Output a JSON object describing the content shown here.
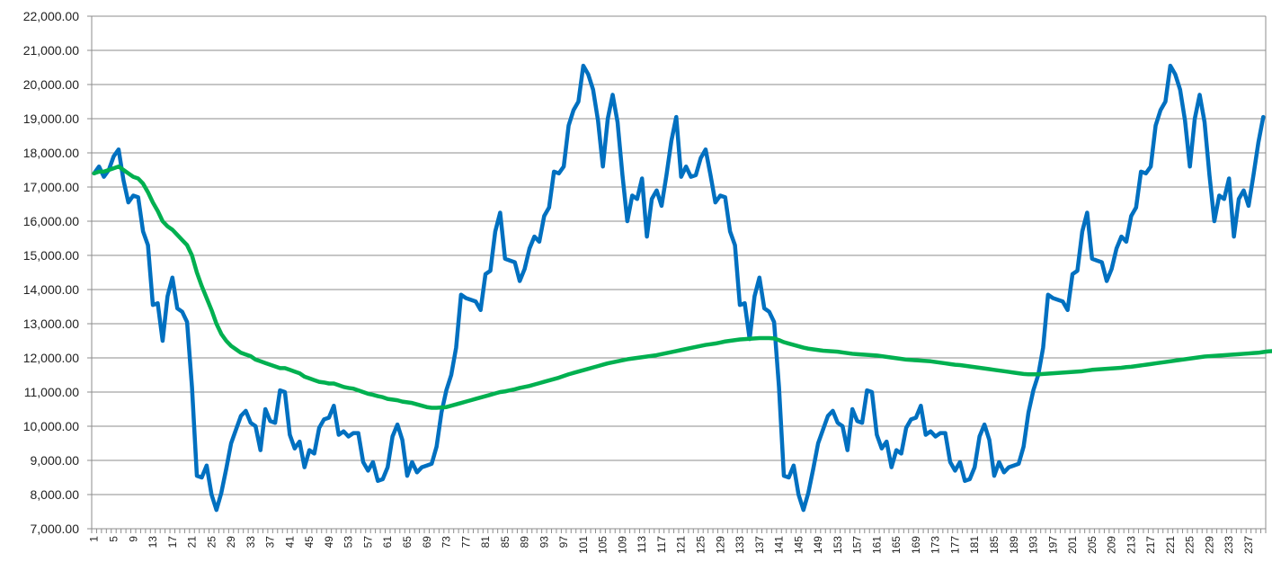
{
  "chart_data": {
    "type": "line",
    "title": "",
    "xlabel": "",
    "ylabel": "",
    "ylim": [
      7000,
      22000
    ],
    "ytick_step": 1000,
    "ytick_labels": [
      "7,000.00",
      "8,000.00",
      "9,000.00",
      "10,000.00",
      "11,000.00",
      "12,000.00",
      "13,000.00",
      "14,000.00",
      "15,000.00",
      "16,000.00",
      "17,000.00",
      "18,000.00",
      "19,000.00",
      "20,000.00",
      "21,000.00",
      "22,000.00"
    ],
    "x_count": 240,
    "x_tick_labels": [
      "1",
      "5",
      "9",
      "13",
      "17",
      "21",
      "25",
      "29",
      "33",
      "37",
      "41",
      "45",
      "49",
      "53",
      "57",
      "61",
      "65",
      "69",
      "73",
      "77",
      "81",
      "85",
      "89",
      "93",
      "97",
      "101",
      "105",
      "109",
      "113",
      "117",
      "121",
      "125",
      "129",
      "133",
      "137",
      "141",
      "145",
      "149",
      "153",
      "157",
      "161",
      "165",
      "169",
      "173",
      "177",
      "181",
      "185",
      "189",
      "193",
      "197",
      "201",
      "205",
      "209",
      "213",
      "217",
      "221",
      "225",
      "229",
      "233",
      "237"
    ],
    "grid": true,
    "legend": "none",
    "series": [
      {
        "color": "#0070C0",
        "values": [
          17400,
          17600,
          17300,
          17500,
          17900,
          18100,
          17200,
          16550,
          16750,
          16700,
          15700,
          15300,
          13550,
          13600,
          12500,
          13800,
          14350,
          13450,
          13350,
          13050,
          11150,
          8550,
          8500,
          8850,
          8000,
          7550,
          8050,
          8750,
          9500,
          9900,
          10300,
          10450,
          10100,
          10000,
          9300,
          10500,
          10150,
          10100,
          11050,
          11000,
          9750,
          9350,
          9550,
          8800,
          9300,
          9200,
          9950,
          10200,
          10250,
          10600,
          9750,
          9850,
          9700,
          9800,
          9800,
          8950,
          8700,
          8950,
          8400,
          8450,
          8800,
          9700,
          10050,
          9600,
          8550,
          8950,
          8650,
          8800,
          8850,
          8900,
          9400,
          10400,
          11050,
          11500,
          12300,
          13850,
          13750,
          13700,
          13650,
          13400,
          14450,
          14550,
          15700,
          16250,
          14900,
          14850,
          14800,
          14250,
          14600,
          15200,
          15550,
          15400,
          16150,
          16400,
          17450,
          17400,
          17600,
          18800,
          19250,
          19500,
          20550,
          20300,
          19850,
          18950,
          17600,
          19000,
          19700,
          18900,
          17350,
          16000,
          16750,
          16650,
          17250,
          15550,
          16650,
          16900,
          16450,
          17350,
          18350,
          19050,
          17300,
          17600,
          17300,
          17350,
          17850,
          18100,
          17350,
          16550,
          16750,
          16700,
          15700,
          15300,
          13550,
          13600,
          12550,
          13800,
          14350,
          13450,
          13350,
          13050,
          11150,
          8550,
          8500,
          8850,
          8000,
          7550,
          8050,
          8750,
          9500,
          9900,
          10300,
          10450,
          10100,
          10000,
          9300,
          10500,
          10150,
          10100,
          11050,
          11000,
          9750,
          9350,
          9550,
          8800,
          9300,
          9200,
          9950,
          10200,
          10250,
          10600,
          9750,
          9850,
          9700,
          9800,
          9800,
          8950,
          8700,
          8950,
          8400,
          8450,
          8800,
          9700,
          10050,
          9600,
          8550,
          8950,
          8650,
          8800,
          8850,
          8900,
          9400,
          10400,
          11050,
          11500,
          12300,
          13850,
          13750,
          13700,
          13650,
          13400,
          14450,
          14550,
          15700,
          16250,
          14900,
          14850,
          14800,
          14250,
          14600,
          15200,
          15550,
          15400,
          16150,
          16400,
          17450,
          17400,
          17600,
          18800,
          19250,
          19500,
          20550,
          20300,
          19850,
          18950,
          17600,
          19000,
          19700,
          18900,
          17350,
          16000,
          16750,
          16650,
          17250,
          15550,
          16650,
          16900,
          16450,
          17350,
          18300,
          19050
        ]
      },
      {
        "color": "#00B050",
        "values": [
          17400,
          17450,
          17450,
          17500,
          17550,
          17600,
          17500,
          17400,
          17300,
          17250,
          17100,
          16850,
          16550,
          16300,
          16000,
          15850,
          15750,
          15600,
          15450,
          15300,
          15000,
          14500,
          14100,
          13750,
          13400,
          13000,
          12700,
          12500,
          12350,
          12250,
          12150,
          12100,
          12050,
          11950,
          11900,
          11850,
          11800,
          11750,
          11700,
          11700,
          11650,
          11600,
          11550,
          11450,
          11400,
          11350,
          11300,
          11280,
          11250,
          11250,
          11200,
          11150,
          11120,
          11100,
          11050,
          11000,
          10950,
          10920,
          10880,
          10850,
          10800,
          10780,
          10760,
          10720,
          10700,
          10680,
          10640,
          10600,
          10560,
          10540,
          10540,
          10550,
          10560,
          10600,
          10640,
          10680,
          10720,
          10760,
          10800,
          10840,
          10880,
          10920,
          10960,
          11000,
          11020,
          11050,
          11080,
          11120,
          11150,
          11180,
          11220,
          11260,
          11300,
          11340,
          11380,
          11420,
          11470,
          11520,
          11560,
          11600,
          11640,
          11680,
          11720,
          11760,
          11800,
          11840,
          11870,
          11900,
          11930,
          11960,
          11980,
          12000,
          12020,
          12040,
          12060,
          12080,
          12110,
          12140,
          12170,
          12200,
          12230,
          12260,
          12290,
          12320,
          12350,
          12380,
          12400,
          12420,
          12450,
          12480,
          12500,
          12520,
          12540,
          12550,
          12560,
          12570,
          12580,
          12580,
          12580,
          12570,
          12520,
          12460,
          12420,
          12380,
          12340,
          12300,
          12270,
          12250,
          12230,
          12210,
          12200,
          12190,
          12180,
          12160,
          12140,
          12120,
          12110,
          12100,
          12090,
          12080,
          12070,
          12050,
          12030,
          12010,
          11990,
          11970,
          11950,
          11940,
          11930,
          11920,
          11910,
          11900,
          11880,
          11860,
          11840,
          11820,
          11800,
          11790,
          11770,
          11750,
          11730,
          11710,
          11690,
          11670,
          11650,
          11630,
          11610,
          11590,
          11570,
          11550,
          11530,
          11520,
          11520,
          11520,
          11530,
          11540,
          11550,
          11560,
          11570,
          11580,
          11590,
          11600,
          11610,
          11630,
          11650,
          11660,
          11670,
          11680,
          11690,
          11700,
          11710,
          11730,
          11740,
          11760,
          11780,
          11800,
          11820,
          11840,
          11860,
          11880,
          11900,
          11920,
          11940,
          11960,
          11980,
          12000,
          12020,
          12040,
          12050,
          12060,
          12070,
          12080,
          12090,
          12100,
          12110,
          12120,
          12130,
          12140,
          12150,
          12170,
          12190,
          12200
        ]
      }
    ]
  }
}
